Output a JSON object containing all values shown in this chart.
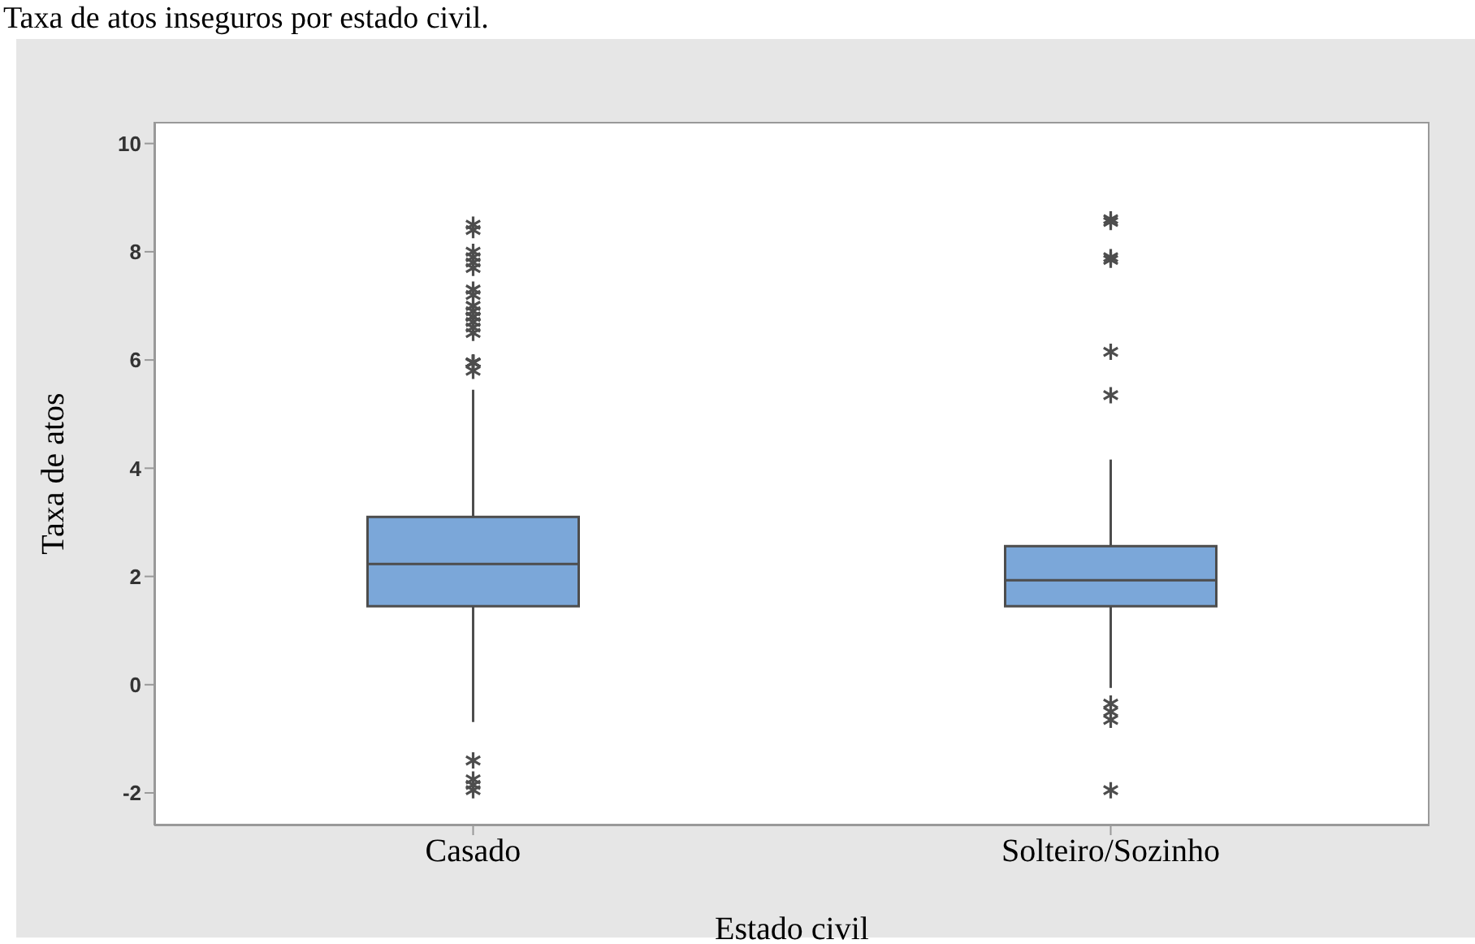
{
  "chart_data": {
    "type": "box",
    "title": "Taxa de atos inseguros por estado civil.",
    "xlabel": "Estado civil",
    "ylabel": "Taxa de atos",
    "categories": [
      "Casado",
      "Solteiro/Sozinho"
    ],
    "ylim": [
      -2.6,
      10.4
    ],
    "yticks": [
      -2,
      0,
      2,
      4,
      6,
      8,
      10
    ],
    "marker": "star",
    "series": [
      {
        "color": "#7ba7d9",
        "boxes": [
          {
            "low": -0.69,
            "q1": 1.45,
            "median": 2.23,
            "q3": 3.1,
            "high": 5.45,
            "outliers": [
              5.8,
              5.95,
              5.95,
              5.95,
              5.95,
              5.95,
              5.95,
              5.95,
              6.5,
              6.6,
              6.7,
              6.8,
              6.8,
              6.8,
              6.9,
              7.0,
              7.2,
              7.3,
              7.7,
              7.8,
              7.9,
              8.0,
              8.4,
              8.5,
              -1.4,
              -1.75,
              -1.85,
              -1.95
            ]
          },
          {
            "low": -0.06,
            "q1": 1.45,
            "median": 1.93,
            "q3": 2.56,
            "high": 4.16,
            "outliers": [
              8.6,
              8.55,
              7.9,
              7.85,
              6.15,
              5.35,
              -0.35,
              -0.5,
              -0.65,
              -1.95
            ]
          }
        ]
      }
    ]
  }
}
